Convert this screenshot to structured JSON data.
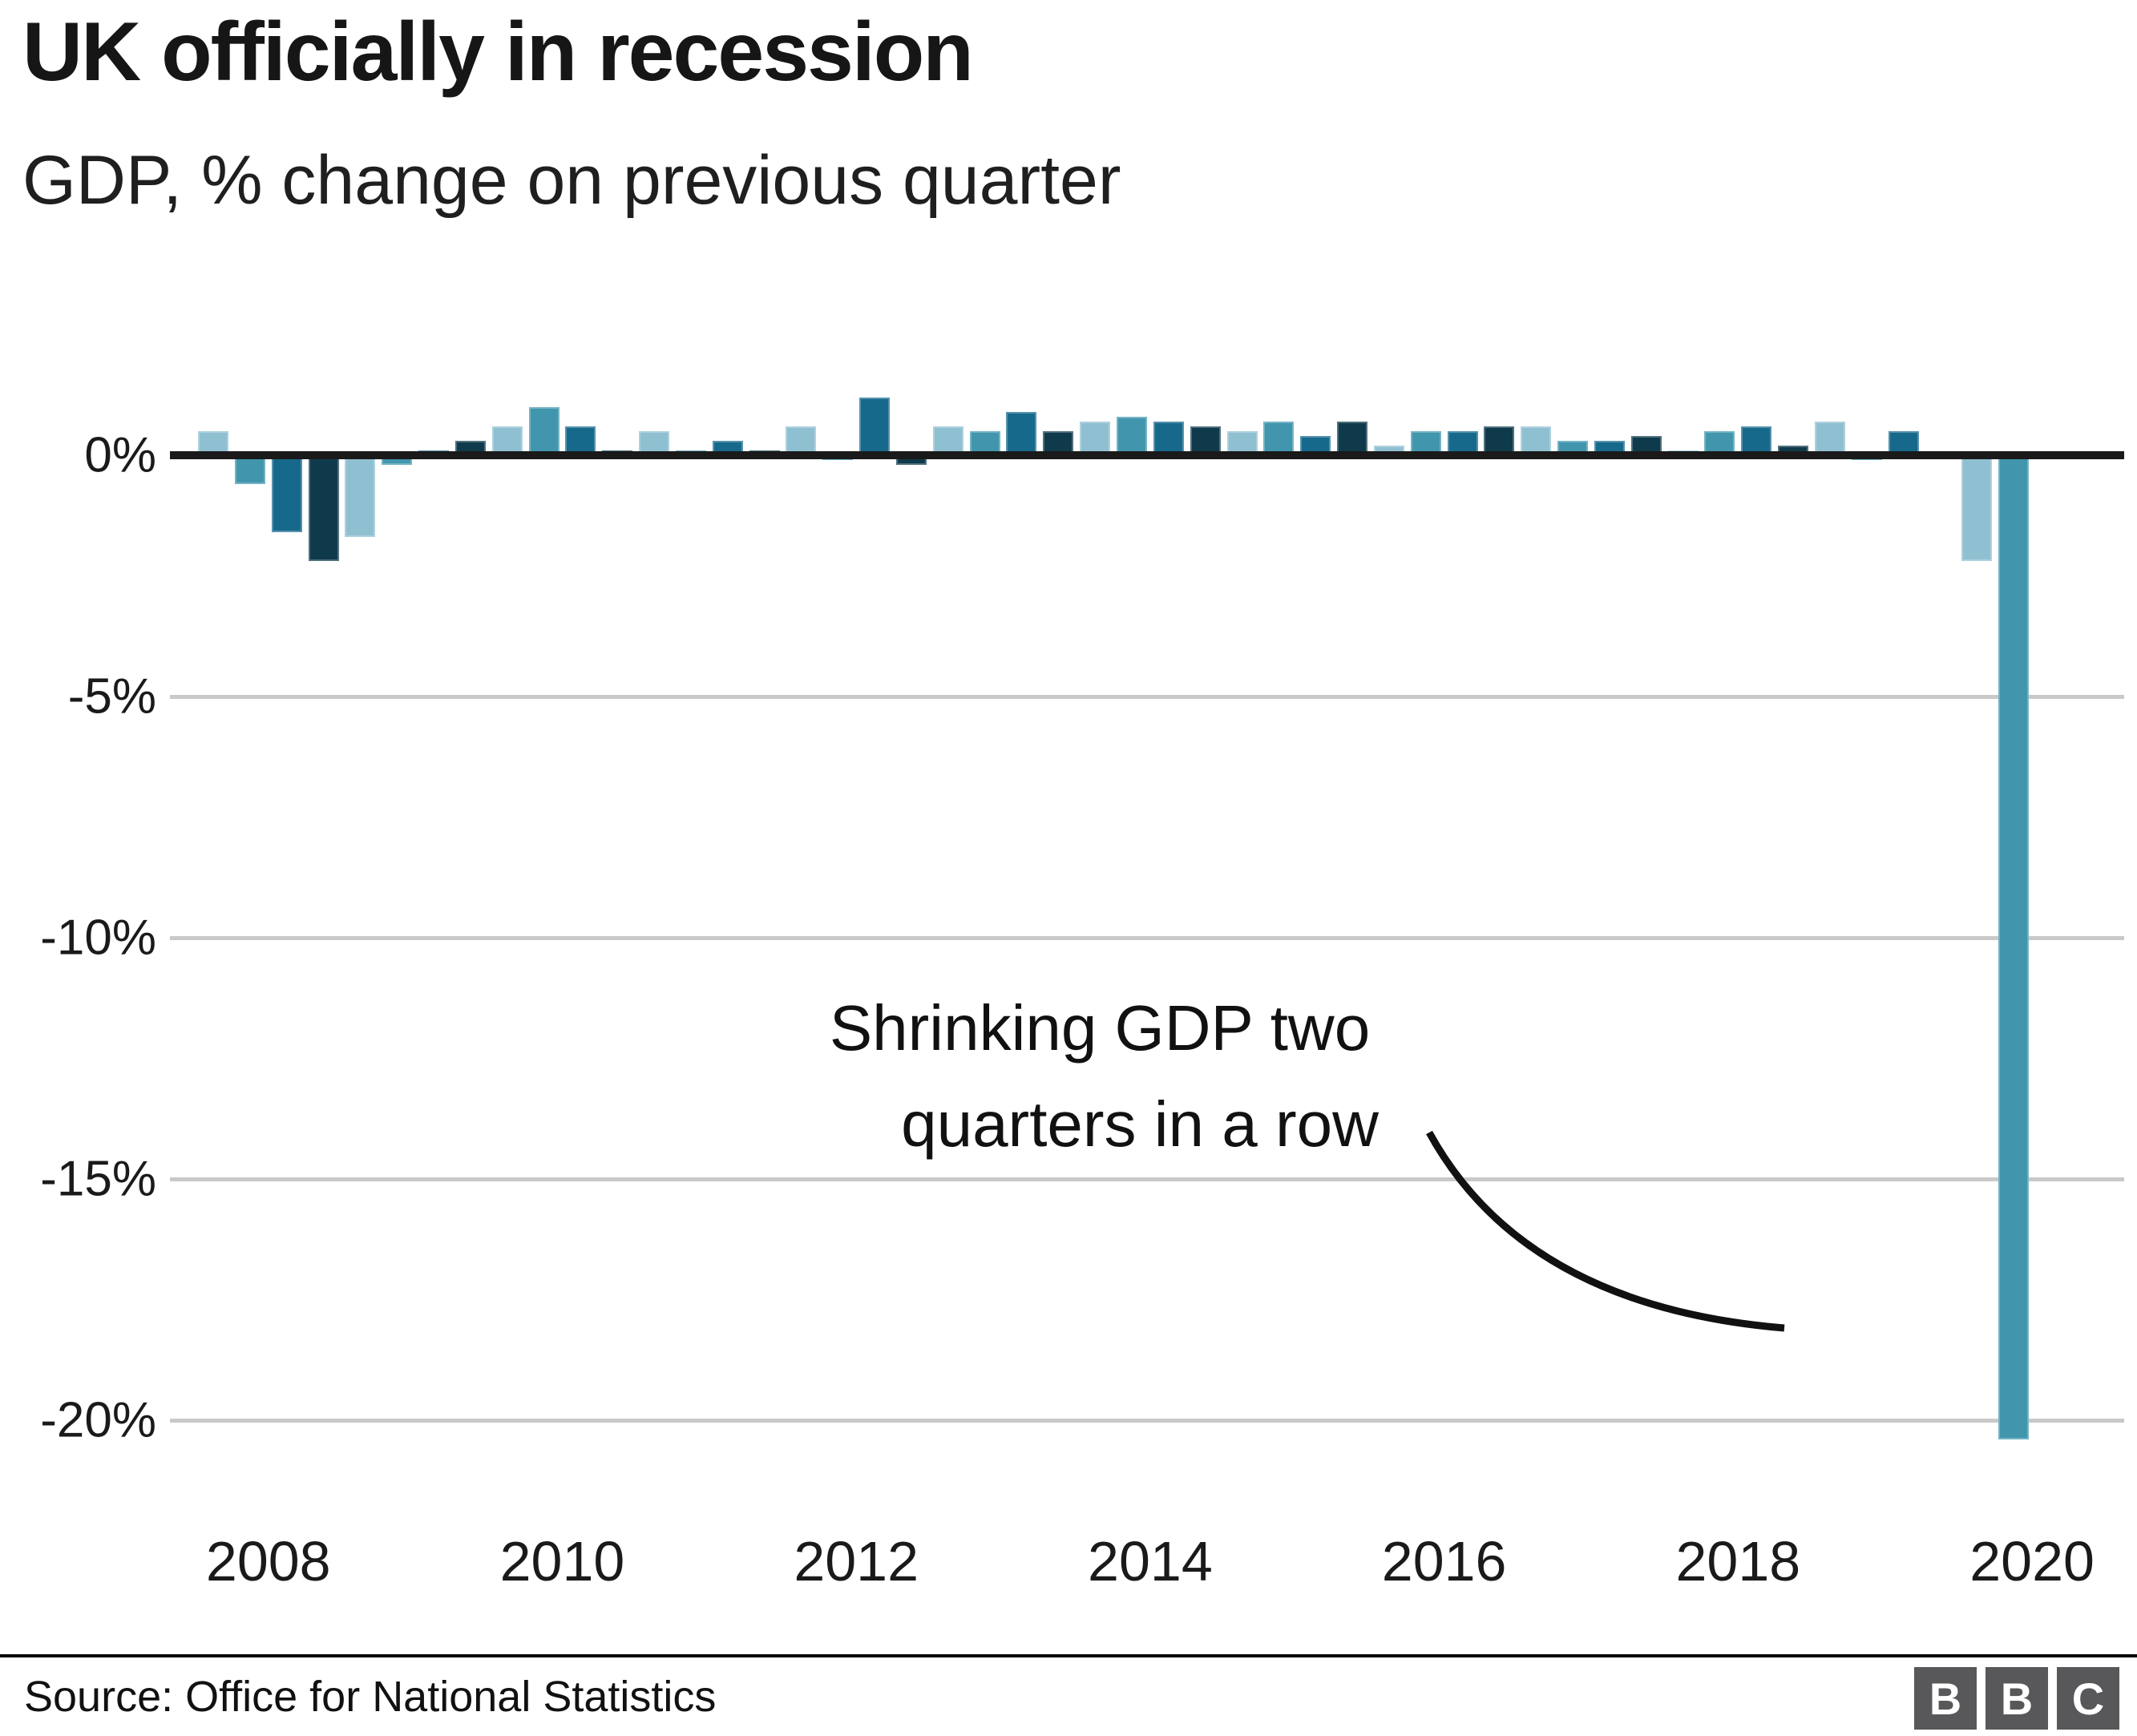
{
  "header": {
    "title": "UK officially in recession",
    "subtitle": "GDP, % change on previous quarter"
  },
  "chart_data": {
    "type": "bar",
    "title": "UK officially in recession",
    "subtitle": "GDP, % change on previous quarter",
    "ylabel": "GDP, % change on previous quarter",
    "xlabel": "",
    "ylim": [
      -21.5,
      1.5
    ],
    "grid": "horizontal",
    "y_ticks": [
      {
        "label": "0%",
        "value": 0
      },
      {
        "label": "-5%",
        "value": -5
      },
      {
        "label": "-10%",
        "value": -10
      },
      {
        "label": "-15%",
        "value": -15
      },
      {
        "label": "-20%",
        "value": -20
      }
    ],
    "x_ticks": [
      "2008",
      "2010",
      "2012",
      "2014",
      "2016",
      "2018",
      "2020"
    ],
    "quarter_colors": {
      "Q1": "#8fc0d1",
      "Q2": "#4196ad",
      "Q3": "#17698c",
      "Q4": "#0f3a4b"
    },
    "points": [
      {
        "year": 2008,
        "quarter": 1,
        "value": 0.5
      },
      {
        "year": 2008,
        "quarter": 2,
        "value": -0.6
      },
      {
        "year": 2008,
        "quarter": 3,
        "value": -1.6
      },
      {
        "year": 2008,
        "quarter": 4,
        "value": -2.2
      },
      {
        "year": 2009,
        "quarter": 1,
        "value": -1.7
      },
      {
        "year": 2009,
        "quarter": 2,
        "value": -0.2
      },
      {
        "year": 2009,
        "quarter": 3,
        "value": 0.1
      },
      {
        "year": 2009,
        "quarter": 4,
        "value": 0.3
      },
      {
        "year": 2010,
        "quarter": 1,
        "value": 0.6
      },
      {
        "year": 2010,
        "quarter": 2,
        "value": 1.0
      },
      {
        "year": 2010,
        "quarter": 3,
        "value": 0.6
      },
      {
        "year": 2010,
        "quarter": 4,
        "value": 0.1
      },
      {
        "year": 2011,
        "quarter": 1,
        "value": 0.5
      },
      {
        "year": 2011,
        "quarter": 2,
        "value": 0.1
      },
      {
        "year": 2011,
        "quarter": 3,
        "value": 0.3
      },
      {
        "year": 2011,
        "quarter": 4,
        "value": 0.1
      },
      {
        "year": 2012,
        "quarter": 1,
        "value": 0.6
      },
      {
        "year": 2012,
        "quarter": 2,
        "value": -0.1
      },
      {
        "year": 2012,
        "quarter": 3,
        "value": 1.2
      },
      {
        "year": 2012,
        "quarter": 4,
        "value": -0.2
      },
      {
        "year": 2013,
        "quarter": 1,
        "value": 0.6
      },
      {
        "year": 2013,
        "quarter": 2,
        "value": 0.5
      },
      {
        "year": 2013,
        "quarter": 3,
        "value": 0.9
      },
      {
        "year": 2013,
        "quarter": 4,
        "value": 0.5
      },
      {
        "year": 2014,
        "quarter": 1,
        "value": 0.7
      },
      {
        "year": 2014,
        "quarter": 2,
        "value": 0.8
      },
      {
        "year": 2014,
        "quarter": 3,
        "value": 0.7
      },
      {
        "year": 2014,
        "quarter": 4,
        "value": 0.6
      },
      {
        "year": 2015,
        "quarter": 1,
        "value": 0.5
      },
      {
        "year": 2015,
        "quarter": 2,
        "value": 0.7
      },
      {
        "year": 2015,
        "quarter": 3,
        "value": 0.4
      },
      {
        "year": 2015,
        "quarter": 4,
        "value": 0.7
      },
      {
        "year": 2016,
        "quarter": 1,
        "value": 0.2
      },
      {
        "year": 2016,
        "quarter": 2,
        "value": 0.5
      },
      {
        "year": 2016,
        "quarter": 3,
        "value": 0.5
      },
      {
        "year": 2016,
        "quarter": 4,
        "value": 0.6
      },
      {
        "year": 2017,
        "quarter": 1,
        "value": 0.6
      },
      {
        "year": 2017,
        "quarter": 2,
        "value": 0.3
      },
      {
        "year": 2017,
        "quarter": 3,
        "value": 0.3
      },
      {
        "year": 2017,
        "quarter": 4,
        "value": 0.4
      },
      {
        "year": 2018,
        "quarter": 1,
        "value": 0.1
      },
      {
        "year": 2018,
        "quarter": 2,
        "value": 0.5
      },
      {
        "year": 2018,
        "quarter": 3,
        "value": 0.6
      },
      {
        "year": 2018,
        "quarter": 4,
        "value": 0.2
      },
      {
        "year": 2019,
        "quarter": 1,
        "value": 0.7
      },
      {
        "year": 2019,
        "quarter": 2,
        "value": -0.1
      },
      {
        "year": 2019,
        "quarter": 3,
        "value": 0.5
      },
      {
        "year": 2019,
        "quarter": 4,
        "value": 0.0
      },
      {
        "year": 2020,
        "quarter": 1,
        "value": -2.2
      },
      {
        "year": 2020,
        "quarter": 2,
        "value": -20.4
      }
    ],
    "annotation": {
      "line1": "Shrinking GDP two",
      "line2": "quarters in a row"
    }
  },
  "footer": {
    "source": "Source: Office for National Statistics",
    "logo_letters": [
      "B",
      "B",
      "C"
    ]
  }
}
